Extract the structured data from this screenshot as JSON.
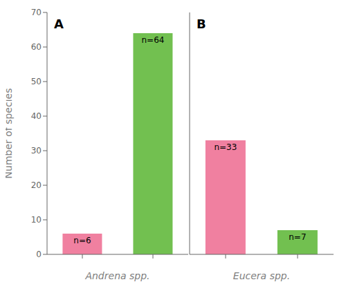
{
  "chart_data": [
    {
      "type": "bar",
      "title": "A",
      "xlabel": "Andrena spp.",
      "ylabel": "Number of species",
      "categories": [
        null,
        null
      ],
      "values": [
        6,
        64
      ],
      "value_labels": [
        "n=6",
        "n=64"
      ],
      "data_labels": true,
      "colors": [
        "#F080A0",
        "#72C050"
      ],
      "ylim": [
        0,
        70
      ],
      "yticks": [
        0,
        10,
        20,
        30,
        40,
        50,
        60,
        70
      ],
      "grid": false,
      "tick_labels": "y"
    },
    {
      "type": "bar",
      "title": "B",
      "xlabel": "Eucera spp.",
      "categories": [
        null,
        null
      ],
      "values": [
        33,
        7
      ],
      "value_labels": [
        "n=33",
        "n=7"
      ],
      "data_labels": true,
      "colors": [
        "#F080A0",
        "#72C050"
      ],
      "ylim": [
        0,
        70
      ],
      "yticks": [
        0,
        10,
        20,
        30,
        40,
        50,
        60,
        70
      ],
      "grid": false,
      "tick_labels": false
    }
  ]
}
